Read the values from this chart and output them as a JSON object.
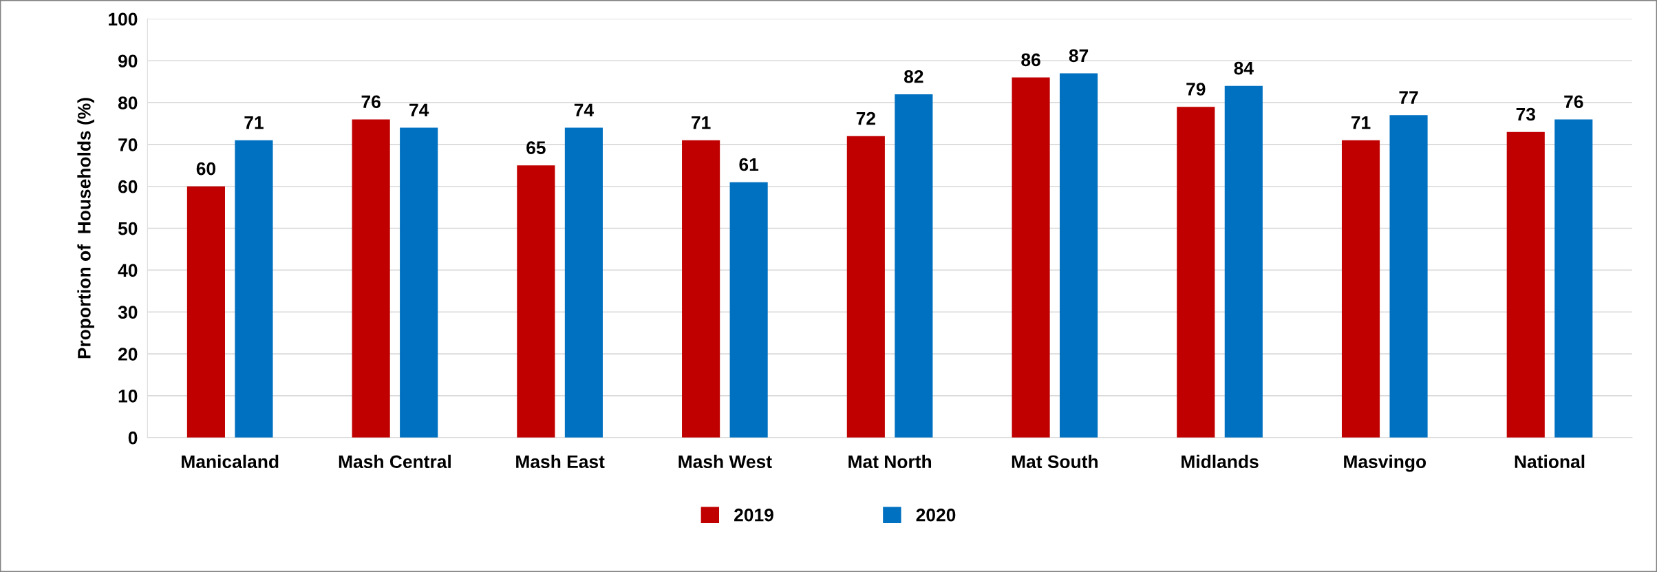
{
  "chart_data": {
    "type": "bar",
    "ylabel": "Proportion of  Households (%)",
    "categories": [
      "Manicaland",
      "Mash Central",
      "Mash East",
      "Mash West",
      "Mat North",
      "Mat South",
      "Midlands",
      "Masvingo",
      "National"
    ],
    "series": [
      {
        "name": "2019",
        "color": "#c00000",
        "values": [
          60,
          76,
          65,
          71,
          72,
          86,
          79,
          71,
          73
        ]
      },
      {
        "name": "2020",
        "color": "#0070c0",
        "values": [
          71,
          74,
          74,
          61,
          82,
          87,
          84,
          77,
          76
        ]
      }
    ],
    "ylim": [
      0,
      100
    ],
    "yticks": [
      0,
      10,
      20,
      30,
      40,
      50,
      60,
      70,
      80,
      90,
      100
    ],
    "grid": "y",
    "legend": "bottom",
    "data_labels": true
  }
}
